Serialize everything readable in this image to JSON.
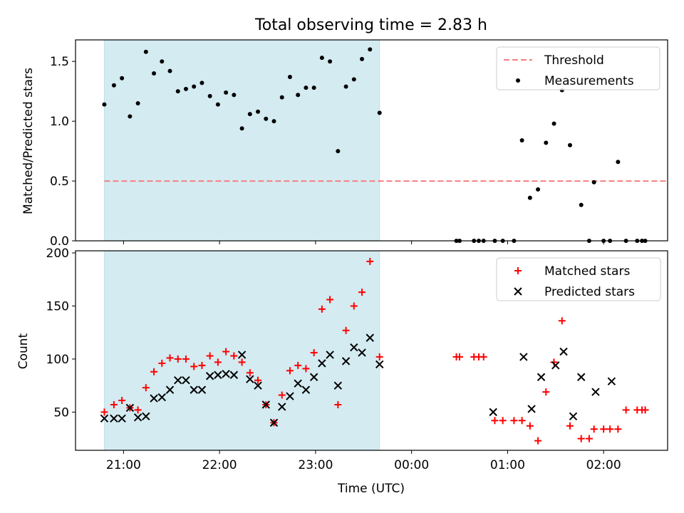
{
  "chart_data": [
    {
      "type": "scatter",
      "title": "Total observing time = 2.83 h",
      "xlabel": "",
      "ylabel": "Matched/Predicted stars",
      "x_unit": "time (UTC), hours after 20:00",
      "xlim": [
        "20:30",
        "02:40"
      ],
      "ylim": [
        0,
        1.68
      ],
      "yticks": [
        "0.0",
        "0.5",
        "1.0",
        "1.5"
      ],
      "shaded_interval": [
        "20:48",
        "23:40"
      ],
      "shade_color": "#d4ebf1",
      "legend": {
        "location": "upper right",
        "entries": [
          "Threshold",
          "Measurements"
        ]
      },
      "series": [
        {
          "name": "Threshold",
          "kind": "dashed-line",
          "color": "#f57f7f",
          "x": [
            "20:48",
            "02:40"
          ],
          "y": [
            0.5,
            0.5
          ]
        },
        {
          "name": "Measurements",
          "kind": "dot",
          "color": "#000000",
          "x": [
            "20:48",
            "20:54",
            "20:59",
            "21:04",
            "21:09",
            "21:14",
            "21:19",
            "21:24",
            "21:29",
            "21:34",
            "21:39",
            "21:44",
            "21:49",
            "21:54",
            "21:59",
            "22:04",
            "22:09",
            "22:14",
            "22:19",
            "22:24",
            "22:29",
            "22:34",
            "22:39",
            "22:44",
            "22:49",
            "22:54",
            "22:59",
            "23:04",
            "23:09",
            "23:14",
            "23:19",
            "23:24",
            "23:29",
            "23:34",
            "23:40",
            "00:28",
            "00:30",
            "00:39",
            "00:42",
            "00:45",
            "00:52",
            "00:57",
            "01:04",
            "01:09",
            "01:14",
            "01:19",
            "01:24",
            "01:29",
            "01:34",
            "01:39",
            "01:46",
            "01:51",
            "01:54",
            "02:00",
            "02:04",
            "02:09",
            "02:14",
            "02:21",
            "02:24",
            "02:26"
          ],
          "y": [
            1.14,
            1.3,
            1.36,
            1.04,
            1.15,
            1.58,
            1.4,
            1.5,
            1.42,
            1.25,
            1.27,
            1.29,
            1.32,
            1.21,
            1.14,
            1.24,
            1.22,
            0.94,
            1.06,
            1.08,
            1.02,
            1.0,
            1.2,
            1.37,
            1.22,
            1.28,
            1.28,
            1.53,
            1.5,
            0.75,
            1.29,
            1.35,
            1.52,
            1.6,
            1.07,
            0,
            0,
            0,
            0,
            0,
            0,
            0,
            0,
            0.84,
            0.36,
            0.43,
            0.82,
            0.98,
            1.26,
            0.8,
            0.3,
            0,
            0.49,
            0,
            0,
            0.66,
            0,
            0,
            0,
            0
          ]
        }
      ]
    },
    {
      "type": "scatter",
      "title": "",
      "xlabel": "Time (UTC)",
      "ylabel": "Count",
      "x_unit": "time (UTC), hours after 20:00",
      "xlim": [
        "20:30",
        "02:40"
      ],
      "xticks": [
        "21:00",
        "22:00",
        "23:00",
        "00:00",
        "01:00",
        "02:00"
      ],
      "ylim": [
        14,
        202
      ],
      "yticks": [
        "50",
        "100",
        "150",
        "200"
      ],
      "shaded_interval": [
        "20:48",
        "23:40"
      ],
      "shade_color": "#d4ebf1",
      "legend": {
        "location": "upper right",
        "entries": [
          "Matched stars",
          "Predicted stars"
        ]
      },
      "series": [
        {
          "name": "Matched stars",
          "kind": "plus",
          "color": "#ff0000",
          "x": [
            "20:48",
            "20:54",
            "20:59",
            "21:04",
            "21:09",
            "21:14",
            "21:19",
            "21:24",
            "21:29",
            "21:34",
            "21:39",
            "21:44",
            "21:49",
            "21:54",
            "21:59",
            "22:04",
            "22:09",
            "22:14",
            "22:19",
            "22:24",
            "22:29",
            "22:34",
            "22:39",
            "22:44",
            "22:49",
            "22:54",
            "22:59",
            "23:04",
            "23:09",
            "23:14",
            "23:19",
            "23:24",
            "23:29",
            "23:34",
            "23:40",
            "00:28",
            "00:30",
            "00:39",
            "00:42",
            "00:45",
            "00:52",
            "00:57",
            "01:04",
            "01:09",
            "01:14",
            "01:19",
            "01:24",
            "01:29",
            "01:34",
            "01:39",
            "01:46",
            "01:51",
            "01:54",
            "02:00",
            "02:04",
            "02:09",
            "02:14",
            "02:21",
            "02:24",
            "02:26"
          ],
          "y": [
            50,
            57,
            61,
            54,
            52,
            73,
            88,
            96,
            101,
            100,
            100,
            93,
            94,
            103,
            97,
            107,
            103,
            97,
            87,
            80,
            57,
            40,
            66,
            89,
            94,
            91,
            106,
            147,
            156,
            57,
            127,
            150,
            163,
            192,
            102,
            102,
            102,
            102,
            102,
            102,
            42,
            42,
            42,
            42,
            37,
            23,
            69,
            97,
            136,
            37,
            25,
            25,
            34,
            34,
            34,
            34,
            52,
            52,
            52,
            52
          ]
        },
        {
          "name": "Predicted stars",
          "kind": "cross",
          "color": "#000000",
          "x": [
            "20:48",
            "20:54",
            "20:59",
            "21:04",
            "21:09",
            "21:14",
            "21:19",
            "21:24",
            "21:29",
            "21:34",
            "21:39",
            "21:44",
            "21:49",
            "21:54",
            "21:59",
            "22:04",
            "22:09",
            "22:14",
            "22:19",
            "22:24",
            "22:29",
            "22:34",
            "22:39",
            "22:44",
            "22:49",
            "22:54",
            "22:59",
            "23:04",
            "23:09",
            "23:14",
            "23:19",
            "23:24",
            "23:29",
            "23:34",
            "23:40",
            "00:51",
            "01:10",
            "01:15",
            "01:21",
            "01:30",
            "01:35",
            "01:41",
            "01:46",
            "01:55",
            "02:05"
          ],
          "y": [
            44,
            44,
            44,
            54,
            45,
            46,
            63,
            64,
            71,
            80,
            80,
            71,
            71,
            84,
            85,
            86,
            85,
            104,
            81,
            75,
            57,
            40,
            55,
            65,
            77,
            71,
            83,
            96,
            104,
            75,
            98,
            111,
            106,
            120,
            95,
            50,
            102,
            53,
            83,
            94,
            107,
            46,
            83,
            69,
            79
          ]
        }
      ]
    }
  ]
}
